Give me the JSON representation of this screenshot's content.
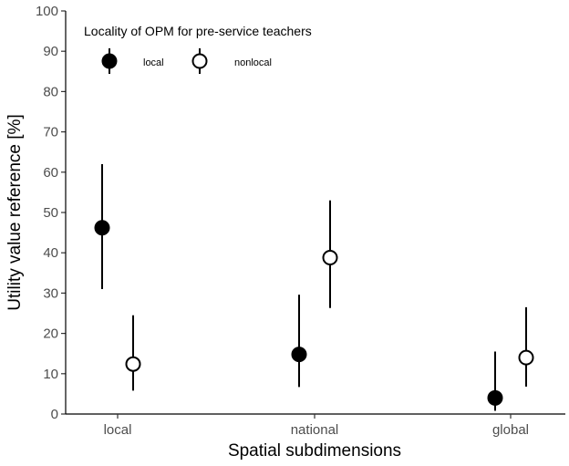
{
  "chart_data": {
    "type": "scatter",
    "title": "",
    "xlabel": "Spatial subdimensions",
    "ylabel": "Utility value reference [%]",
    "ylim": [
      0,
      100
    ],
    "yticks": [
      0,
      10,
      20,
      30,
      40,
      50,
      60,
      70,
      80,
      90,
      100
    ],
    "categories": [
      "local",
      "national",
      "global"
    ],
    "grid": false,
    "legend": {
      "title": "Locality of OPM for pre-service teachers",
      "placement": "top-left",
      "entries": [
        "local",
        "nonlocal"
      ]
    },
    "series": [
      {
        "name": "local",
        "marker": "filled-circle",
        "color": "#000000",
        "values": [
          46.2,
          14.8,
          4.0
        ],
        "lower": [
          31.0,
          6.7,
          0.8
        ],
        "upper": [
          62.0,
          29.6,
          15.5
        ]
      },
      {
        "name": "nonlocal",
        "marker": "open-circle",
        "color": "#000000",
        "values": [
          12.4,
          38.8,
          14.0
        ],
        "lower": [
          5.8,
          26.3,
          6.8
        ],
        "upper": [
          24.5,
          53.0,
          26.5
        ]
      }
    ]
  }
}
